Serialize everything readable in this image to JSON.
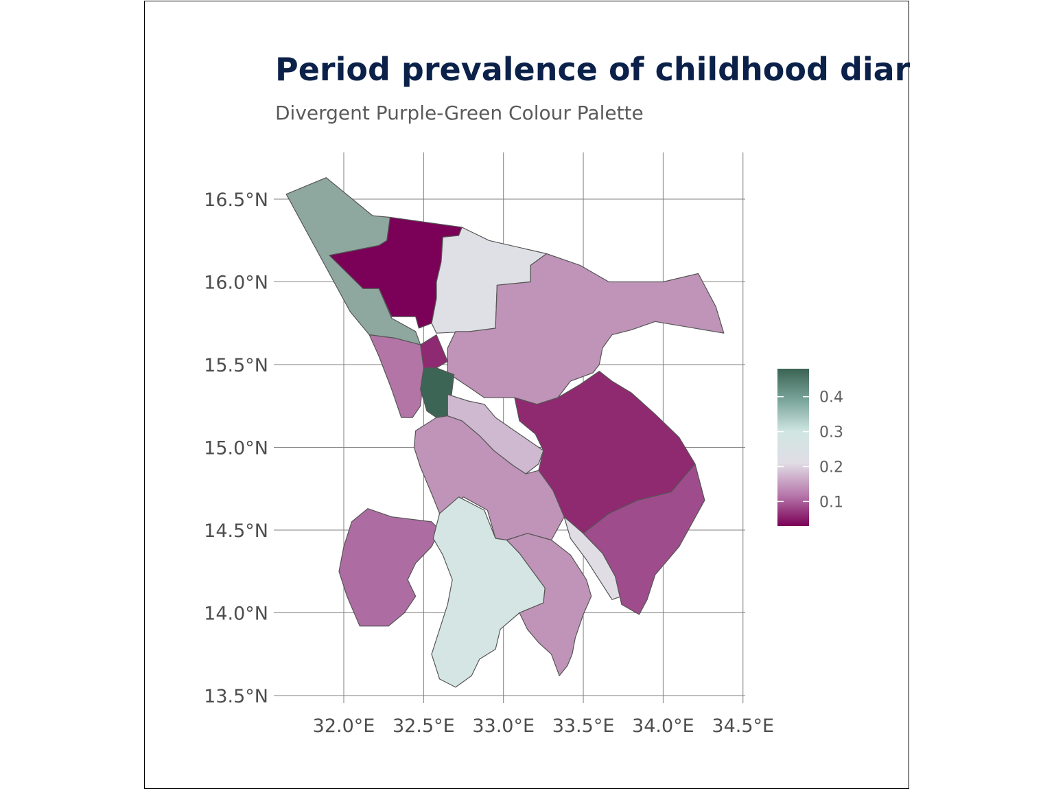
{
  "title": "Period prevalence of childhood diarrhoea",
  "subtitle": "Divergent Purple-Green Colour Palette",
  "colors": {
    "title": "#0b2149",
    "subtitle": "#5a5a5a",
    "axis_text": "#4d4d4d",
    "grid": "#7f7f7f",
    "border": "#555555",
    "palette": [
      "#7b0057",
      "#b87aad",
      "#e0dde5",
      "#d0e6e2",
      "#7aa59a",
      "#3b6354"
    ]
  },
  "axes": {
    "lon_ticks": [
      "32.0°E",
      "32.5°E",
      "33.0°E",
      "33.5°E",
      "34.0°E",
      "34.5°E"
    ],
    "lon_values": [
      32.0,
      32.5,
      33.0,
      33.5,
      34.0,
      34.5
    ],
    "lat_ticks": [
      "16.5°N",
      "16.0°N",
      "15.5°N",
      "15.0°N",
      "14.5°N",
      "14.0°N",
      "13.5°N"
    ],
    "lat_values": [
      16.5,
      16.0,
      15.5,
      15.0,
      14.5,
      14.0,
      13.5
    ]
  },
  "legend": {
    "min": 0.03,
    "max": 0.48,
    "ticks": [
      {
        "label": "0.4",
        "value": 0.4
      },
      {
        "label": "0.3",
        "value": 0.3
      },
      {
        "label": "0.2",
        "value": 0.2
      },
      {
        "label": "0.1",
        "value": 0.1
      }
    ]
  },
  "regions": [
    {
      "id": "region-northwest-strip",
      "value": 0.38,
      "color": "#8fa89f",
      "coords": [
        [
          31.64,
          16.53
        ],
        [
          31.89,
          16.63
        ],
        [
          32.18,
          16.4
        ],
        [
          32.29,
          16.39
        ],
        [
          32.27,
          16.25
        ],
        [
          32.22,
          16.22
        ],
        [
          31.91,
          16.16
        ],
        [
          32.12,
          15.96
        ],
        [
          32.22,
          15.96
        ],
        [
          32.3,
          15.78
        ],
        [
          32.45,
          15.7
        ],
        [
          32.48,
          15.62
        ],
        [
          32.32,
          15.66
        ],
        [
          32.16,
          15.68
        ],
        [
          32.04,
          15.82
        ]
      ]
    },
    {
      "id": "region-north-central",
      "value": 0.03,
      "color": "#7b0057",
      "coords": [
        [
          32.29,
          16.39
        ],
        [
          32.74,
          16.33
        ],
        [
          32.72,
          16.28
        ],
        [
          32.62,
          16.27
        ],
        [
          32.61,
          16.12
        ],
        [
          32.58,
          16.0
        ],
        [
          32.58,
          15.9
        ],
        [
          32.55,
          15.75
        ],
        [
          32.47,
          15.72
        ],
        [
          32.45,
          15.79
        ],
        [
          32.3,
          15.79
        ],
        [
          32.22,
          15.96
        ],
        [
          32.12,
          15.96
        ],
        [
          31.91,
          16.16
        ],
        [
          32.22,
          16.22
        ],
        [
          32.27,
          16.25
        ]
      ]
    },
    {
      "id": "region-north-white",
      "value": 0.22,
      "color": "#dfdfe6",
      "coords": [
        [
          32.74,
          16.33
        ],
        [
          32.91,
          16.25
        ],
        [
          33.27,
          16.17
        ],
        [
          33.17,
          16.1
        ],
        [
          33.17,
          16.0
        ],
        [
          32.96,
          15.98
        ],
        [
          32.95,
          15.72
        ],
        [
          32.79,
          15.7
        ],
        [
          32.58,
          15.69
        ],
        [
          32.55,
          15.75
        ],
        [
          32.58,
          15.9
        ],
        [
          32.58,
          16.0
        ],
        [
          32.61,
          16.12
        ],
        [
          32.62,
          16.27
        ],
        [
          32.72,
          16.28
        ]
      ]
    },
    {
      "id": "region-northeast-large",
      "value": 0.16,
      "color": "#bf94b8",
      "coords": [
        [
          33.27,
          16.17
        ],
        [
          33.48,
          16.1
        ],
        [
          33.66,
          16.0
        ],
        [
          34.0,
          16.0
        ],
        [
          34.22,
          16.05
        ],
        [
          34.33,
          15.85
        ],
        [
          34.38,
          15.69
        ],
        [
          33.95,
          15.76
        ],
        [
          33.8,
          15.71
        ],
        [
          33.68,
          15.68
        ],
        [
          33.62,
          15.6
        ],
        [
          33.6,
          15.5
        ],
        [
          33.56,
          15.45
        ],
        [
          33.42,
          15.4
        ],
        [
          33.34,
          15.3
        ],
        [
          33.21,
          15.26
        ],
        [
          33.07,
          15.3
        ],
        [
          32.88,
          15.3
        ],
        [
          32.79,
          15.36
        ],
        [
          32.65,
          15.45
        ],
        [
          32.65,
          15.6
        ],
        [
          32.7,
          15.7
        ],
        [
          32.79,
          15.7
        ],
        [
          32.95,
          15.72
        ],
        [
          32.96,
          15.98
        ],
        [
          33.17,
          16.0
        ],
        [
          33.17,
          16.1
        ]
      ]
    },
    {
      "id": "region-west-small",
      "value": 0.12,
      "color": "#b275a6",
      "coords": [
        [
          32.16,
          15.68
        ],
        [
          32.32,
          15.66
        ],
        [
          32.48,
          15.62
        ],
        [
          32.55,
          15.57
        ],
        [
          32.5,
          15.45
        ],
        [
          32.48,
          15.25
        ],
        [
          32.43,
          15.18
        ],
        [
          32.36,
          15.18
        ],
        [
          32.3,
          15.35
        ],
        [
          32.22,
          15.55
        ]
      ]
    },
    {
      "id": "region-center-small-purple",
      "value": 0.07,
      "color": "#8e2a71",
      "coords": [
        [
          32.48,
          15.62
        ],
        [
          32.58,
          15.68
        ],
        [
          32.65,
          15.52
        ],
        [
          32.58,
          15.48
        ],
        [
          32.5,
          15.48
        ]
      ]
    },
    {
      "id": "region-center-darkgreen",
      "value": 0.48,
      "color": "#3d6556",
      "coords": [
        [
          32.5,
          15.48
        ],
        [
          32.58,
          15.48
        ],
        [
          32.69,
          15.44
        ],
        [
          32.67,
          15.28
        ],
        [
          32.65,
          15.19
        ],
        [
          32.58,
          15.18
        ],
        [
          32.52,
          15.22
        ],
        [
          32.48,
          15.35
        ]
      ]
    },
    {
      "id": "region-center-lightpurple",
      "value": 0.18,
      "color": "#cfb9d0",
      "coords": [
        [
          32.65,
          15.32
        ],
        [
          32.78,
          15.28
        ],
        [
          32.88,
          15.26
        ],
        [
          32.95,
          15.18
        ],
        [
          33.1,
          15.08
        ],
        [
          33.25,
          14.98
        ],
        [
          33.22,
          14.9
        ],
        [
          33.14,
          14.84
        ],
        [
          33.06,
          14.89
        ],
        [
          32.94,
          14.98
        ],
        [
          32.85,
          15.07
        ],
        [
          32.74,
          15.16
        ],
        [
          32.65,
          15.19
        ]
      ]
    },
    {
      "id": "region-east-large-purple",
      "value": 0.08,
      "color": "#8f2a71",
      "coords": [
        [
          33.07,
          15.3
        ],
        [
          33.21,
          15.26
        ],
        [
          33.34,
          15.3
        ],
        [
          33.48,
          15.38
        ],
        [
          33.6,
          15.46
        ],
        [
          33.68,
          15.4
        ],
        [
          33.8,
          15.33
        ],
        [
          33.95,
          15.2
        ],
        [
          34.1,
          15.06
        ],
        [
          34.2,
          14.9
        ],
        [
          34.05,
          14.73
        ],
        [
          33.84,
          14.68
        ],
        [
          33.73,
          14.63
        ],
        [
          33.66,
          14.6
        ],
        [
          33.5,
          14.48
        ],
        [
          33.38,
          14.58
        ],
        [
          33.31,
          14.74
        ],
        [
          33.22,
          14.86
        ],
        [
          33.25,
          14.98
        ],
        [
          33.2,
          15.08
        ],
        [
          33.1,
          15.16
        ]
      ]
    },
    {
      "id": "region-center-west-mauve",
      "value": 0.15,
      "color": "#bf94b8",
      "coords": [
        [
          32.58,
          15.18
        ],
        [
          32.65,
          15.19
        ],
        [
          32.74,
          15.16
        ],
        [
          32.85,
          15.07
        ],
        [
          32.94,
          14.98
        ],
        [
          33.06,
          14.89
        ],
        [
          33.14,
          14.84
        ],
        [
          33.22,
          14.86
        ],
        [
          33.31,
          14.74
        ],
        [
          33.38,
          14.58
        ],
        [
          33.3,
          14.44
        ],
        [
          33.15,
          14.48
        ],
        [
          33.02,
          14.44
        ],
        [
          32.95,
          14.45
        ],
        [
          32.9,
          14.62
        ],
        [
          32.75,
          14.7
        ],
        [
          32.6,
          14.6
        ],
        [
          32.55,
          14.72
        ],
        [
          32.48,
          14.88
        ],
        [
          32.44,
          15.0
        ],
        [
          32.45,
          15.1
        ]
      ]
    },
    {
      "id": "region-southwest-purple",
      "value": 0.12,
      "color": "#ad6da2",
      "coords": [
        [
          32.15,
          14.63
        ],
        [
          32.3,
          14.58
        ],
        [
          32.55,
          14.55
        ],
        [
          32.6,
          14.5
        ],
        [
          32.55,
          14.4
        ],
        [
          32.45,
          14.3
        ],
        [
          32.4,
          14.2
        ],
        [
          32.45,
          14.1
        ],
        [
          32.38,
          14.0
        ],
        [
          32.28,
          13.92
        ],
        [
          32.1,
          13.92
        ],
        [
          32.02,
          14.1
        ],
        [
          31.97,
          14.25
        ],
        [
          32.0,
          14.4
        ],
        [
          32.05,
          14.55
        ]
      ]
    },
    {
      "id": "region-south-lightgreen",
      "value": 0.27,
      "color": "#d5e5e3",
      "coords": [
        [
          32.6,
          14.6
        ],
        [
          32.72,
          14.7
        ],
        [
          32.88,
          14.62
        ],
        [
          32.95,
          14.45
        ],
        [
          33.02,
          14.44
        ],
        [
          33.1,
          14.36
        ],
        [
          33.26,
          14.15
        ],
        [
          33.25,
          14.06
        ],
        [
          33.1,
          14.0
        ],
        [
          32.98,
          13.9
        ],
        [
          32.95,
          13.78
        ],
        [
          32.85,
          13.72
        ],
        [
          32.8,
          13.62
        ],
        [
          32.7,
          13.55
        ],
        [
          32.6,
          13.6
        ],
        [
          32.55,
          13.75
        ],
        [
          32.6,
          13.9
        ],
        [
          32.65,
          14.05
        ],
        [
          32.68,
          14.2
        ],
        [
          32.62,
          14.35
        ],
        [
          32.56,
          14.45
        ]
      ]
    },
    {
      "id": "region-southeast-mauve",
      "value": 0.15,
      "color": "#bf94b8",
      "coords": [
        [
          33.02,
          14.44
        ],
        [
          33.15,
          14.48
        ],
        [
          33.3,
          14.44
        ],
        [
          33.42,
          14.35
        ],
        [
          33.52,
          14.2
        ],
        [
          33.55,
          14.1
        ],
        [
          33.5,
          13.99
        ],
        [
          33.45,
          13.85
        ],
        [
          33.43,
          13.75
        ],
        [
          33.4,
          13.68
        ],
        [
          33.35,
          13.62
        ],
        [
          33.3,
          13.75
        ],
        [
          33.22,
          13.82
        ],
        [
          33.15,
          13.9
        ],
        [
          33.1,
          14.0
        ],
        [
          33.25,
          14.06
        ],
        [
          33.26,
          14.15
        ],
        [
          33.1,
          14.36
        ]
      ]
    },
    {
      "id": "region-east-strip-white",
      "value": 0.22,
      "color": "#e0dde5",
      "coords": [
        [
          33.38,
          14.58
        ],
        [
          33.5,
          14.48
        ],
        [
          33.62,
          14.36
        ],
        [
          33.7,
          14.22
        ],
        [
          33.74,
          14.1
        ],
        [
          33.68,
          14.08
        ],
        [
          33.6,
          14.2
        ],
        [
          33.52,
          14.32
        ],
        [
          33.42,
          14.45
        ]
      ]
    },
    {
      "id": "region-southeast-purple",
      "value": 0.1,
      "color": "#9e4c8b",
      "coords": [
        [
          33.5,
          14.48
        ],
        [
          33.66,
          14.6
        ],
        [
          33.84,
          14.68
        ],
        [
          34.05,
          14.73
        ],
        [
          34.2,
          14.9
        ],
        [
          34.26,
          14.68
        ],
        [
          34.1,
          14.4
        ],
        [
          33.95,
          14.23
        ],
        [
          33.9,
          14.08
        ],
        [
          33.85,
          13.99
        ],
        [
          33.74,
          14.05
        ],
        [
          33.7,
          14.22
        ],
        [
          33.62,
          14.36
        ]
      ]
    }
  ]
}
